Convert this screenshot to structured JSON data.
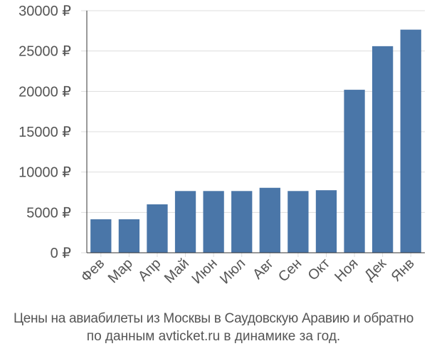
{
  "chart_data": {
    "type": "bar",
    "categories": [
      "Фев",
      "Мар",
      "Апр",
      "Май",
      "Июн",
      "Июл",
      "Авг",
      "Сен",
      "Окт",
      "Ноя",
      "Дек",
      "Янв"
    ],
    "values": [
      4150,
      4150,
      6000,
      7650,
      7650,
      7650,
      8050,
      7650,
      7750,
      20200,
      25600,
      27650
    ],
    "ylim": [
      0,
      30000
    ],
    "yticks": [
      0,
      5000,
      10000,
      15000,
      20000,
      25000,
      30000
    ],
    "ytick_labels": [
      "0 ₽",
      "5000 ₽",
      "10000 ₽",
      "15000 ₽",
      "20000 ₽",
      "25000 ₽",
      "30000 ₽"
    ],
    "grid": true,
    "colors": {
      "bar": "#4a76a8",
      "grid": "#dddddd",
      "axis": "#333333",
      "text": "#555555"
    }
  },
  "caption": {
    "line1": "Цены на авиабилеты из Москвы в Саудовскую Аравию и обратно",
    "line2": "по данным avticket.ru в динамике за год."
  }
}
